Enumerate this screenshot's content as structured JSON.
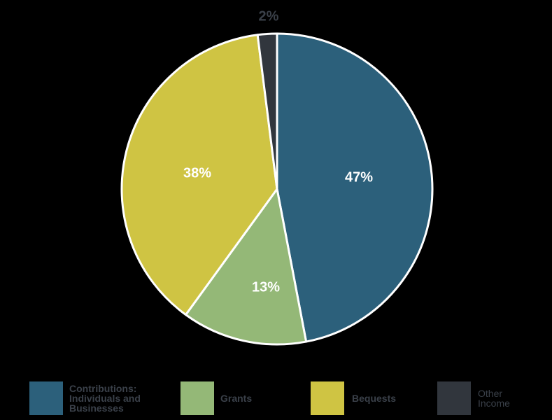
{
  "chart_data": {
    "type": "pie",
    "title": "",
    "categories": [
      "Contributions: Individuals and Businesses",
      "Grants",
      "Bequests",
      "Other Income"
    ],
    "values": [
      47,
      13,
      38,
      2
    ],
    "labels": [
      "47%",
      "13%",
      "38%",
      "2%"
    ],
    "colors": [
      "#2c607b",
      "#94b877",
      "#cfc443",
      "#31363d"
    ],
    "start_angle": "12 o'clock",
    "direction": "clockwise",
    "legend_position": "bottom"
  },
  "legend": {
    "items": [
      {
        "label_lines": [
          "Contributions:",
          "Individuals and",
          "Businesses"
        ],
        "color": "#2c607b"
      },
      {
        "label_lines": [
          "Grants"
        ],
        "color": "#94b877"
      },
      {
        "label_lines": [
          "Bequests"
        ],
        "color": "#cfc443"
      },
      {
        "label_lines": [
          "Other",
          "Income"
        ],
        "color": "#31363d"
      }
    ]
  }
}
